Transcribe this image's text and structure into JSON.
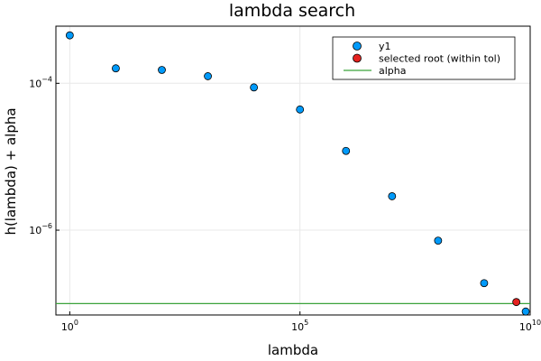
{
  "chart_data": {
    "type": "scatter",
    "title": "lambda search",
    "xlabel": "lambda",
    "ylabel": "h(lambda) + alpha",
    "x_scale": "log10",
    "y_scale": "log10",
    "xlim": [
      0.5,
      10000000000.0
    ],
    "ylim": [
      7e-08,
      0.0006
    ],
    "x_ticks": [
      {
        "value": 1,
        "base": "10",
        "exp": "0"
      },
      {
        "value": 100000,
        "base": "10",
        "exp": "5"
      },
      {
        "value": 10000000000,
        "base": "10",
        "exp": "10"
      }
    ],
    "y_ticks": [
      {
        "value": 1e-06,
        "base": "10",
        "exp": "−6"
      },
      {
        "value": 0.0001,
        "base": "10",
        "exp": "−4"
      }
    ],
    "grid": true,
    "legend_position": "top-right",
    "series": [
      {
        "name": "y1",
        "kind": "scatter",
        "color": "#009AFA",
        "points": [
          {
            "x": 1,
            "y": 0.00045
          },
          {
            "x": 10,
            "y": 0.00016
          },
          {
            "x": 100,
            "y": 0.000152
          },
          {
            "x": 1000,
            "y": 0.000125
          },
          {
            "x": 10000,
            "y": 8.8e-05
          },
          {
            "x": 100000,
            "y": 4.4e-05
          },
          {
            "x": 1000000,
            "y": 1.2e-05
          },
          {
            "x": 10000000,
            "y": 2.9e-06
          },
          {
            "x": 100000000,
            "y": 7.2e-07
          },
          {
            "x": 1000000000,
            "y": 1.9e-07
          },
          {
            "x": 8000000000,
            "y": 7.8e-08
          }
        ]
      },
      {
        "name": "selected root (within tol)",
        "kind": "scatter",
        "color": "#E5221F",
        "points": [
          {
            "x": 5000000000,
            "y": 1.05e-07
          }
        ]
      },
      {
        "name": "alpha",
        "kind": "hline",
        "color": "#3BA33B",
        "y": 1e-07
      }
    ]
  }
}
